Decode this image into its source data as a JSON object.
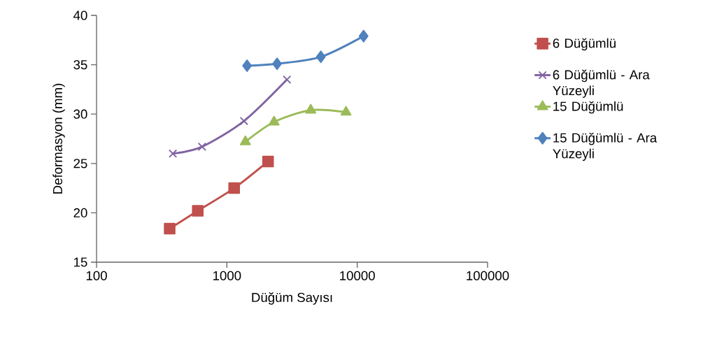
{
  "chart_data": {
    "type": "line",
    "xlabel": "Düğüm Sayısı",
    "ylabel": "Deformasyon (mm)",
    "log": "x",
    "xlim": [
      100,
      100000
    ],
    "xticks": [
      100,
      1000,
      10000,
      100000
    ],
    "ylim": [
      15,
      40
    ],
    "yticks": [
      15,
      20,
      25,
      30,
      35,
      40
    ],
    "grid": false,
    "legend": "right",
    "series": [
      {
        "name": "6 Düğümlü",
        "color": "#c0504d",
        "marker": "square",
        "x": [
          364,
          598,
          1137,
          2070
        ],
        "values": [
          18.4,
          20.2,
          22.5,
          25.2
        ]
      },
      {
        "name": "6 Düğümlü - Ara Yüzeyli",
        "color": "#8064a2",
        "marker": "cross",
        "x": [
          385,
          645,
          1353,
          2890
        ],
        "values": [
          26.0,
          26.7,
          29.3,
          33.5
        ]
      },
      {
        "name": "15 Düğümlü",
        "color": "#9bbb59",
        "marker": "triangle",
        "x": [
          1387,
          2300,
          4400,
          8200
        ],
        "values": [
          27.2,
          29.2,
          30.4,
          30.2
        ]
      },
      {
        "name": "15 Düğümlü - Ara Yüzeyli",
        "color": "#4f81bd",
        "marker": "diamond",
        "x": [
          1428,
          2427,
          5260,
          11190
        ],
        "values": [
          34.9,
          35.1,
          35.8,
          37.9
        ]
      }
    ]
  }
}
